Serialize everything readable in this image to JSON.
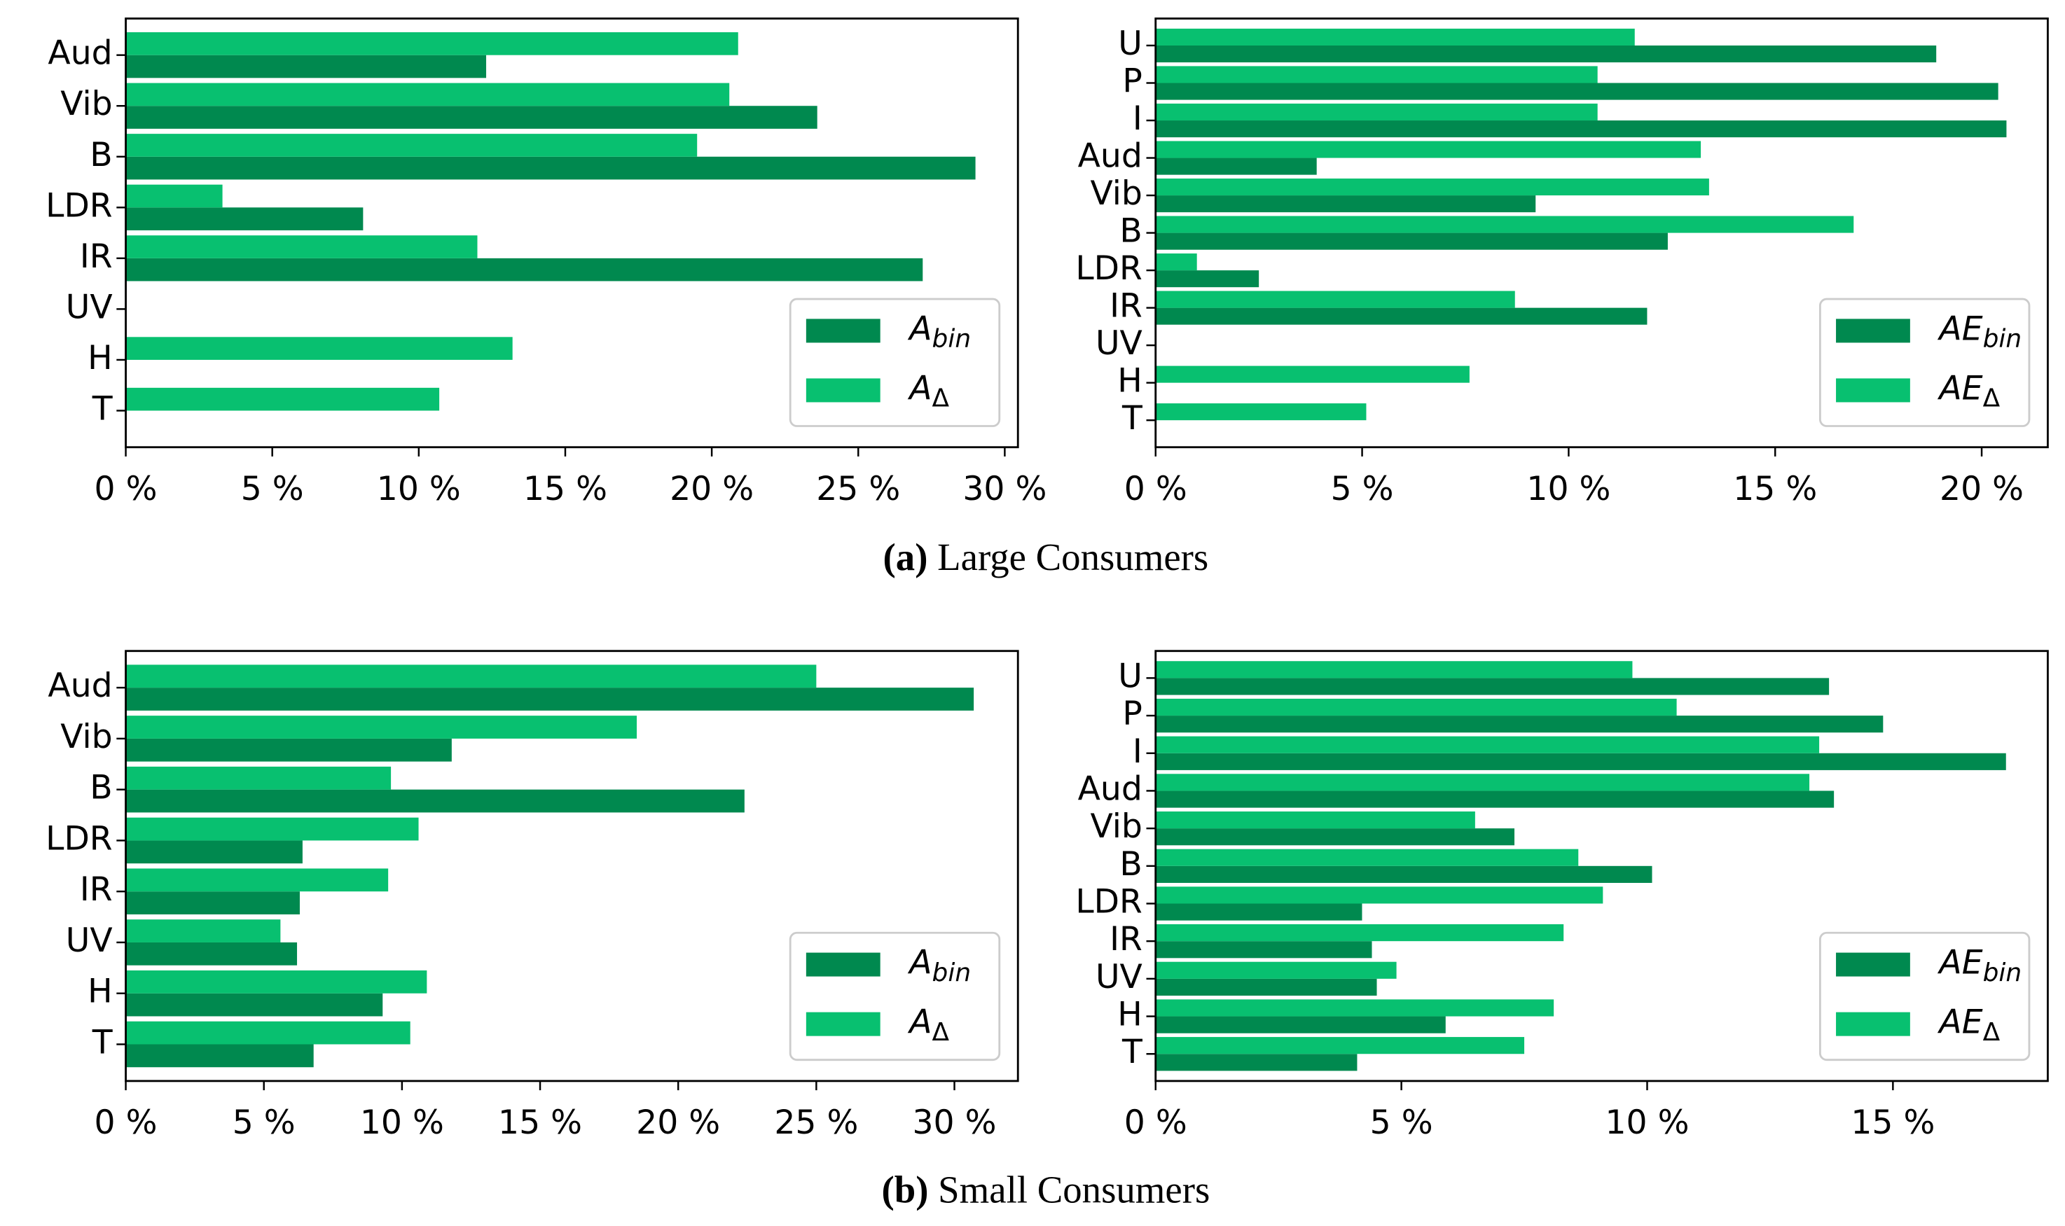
{
  "chart_data": [
    {
      "type": "barh",
      "categories": [
        "Aud",
        "Vib",
        "B",
        "LDR",
        "IR",
        "UV",
        "H",
        "T"
      ],
      "series": [
        {
          "name": "A_bin",
          "color": "#00894f",
          "values": [
            12.3,
            23.6,
            29.0,
            8.1,
            27.2,
            0,
            0,
            0
          ]
        },
        {
          "name": "A_Δ",
          "color": "#08c070",
          "values": [
            20.9,
            20.6,
            19.5,
            3.3,
            12.0,
            0,
            13.2,
            10.7
          ]
        }
      ],
      "xlim": [
        0,
        30.45
      ],
      "xticks": [
        {
          "value": 0,
          "label": "0 %"
        },
        {
          "value": 5,
          "label": "5 %"
        },
        {
          "value": 10,
          "label": "10 %"
        },
        {
          "value": 15,
          "label": "15 %"
        },
        {
          "value": 20,
          "label": "20 %"
        },
        {
          "value": 25,
          "label": "25 %"
        },
        {
          "value": 30,
          "label": "30 %"
        }
      ],
      "legend": "lower right"
    },
    {
      "type": "barh",
      "categories": [
        "U",
        "P",
        "I",
        "Aud",
        "Vib",
        "B",
        "LDR",
        "IR",
        "UV",
        "H",
        "T"
      ],
      "series": [
        {
          "name": "AE_bin",
          "color": "#00894f",
          "values": [
            18.9,
            20.4,
            20.6,
            3.9,
            9.2,
            12.4,
            2.5,
            11.9,
            0,
            0,
            0
          ]
        },
        {
          "name": "AE_Δ",
          "color": "#08c070",
          "values": [
            11.6,
            10.7,
            10.7,
            13.2,
            13.4,
            16.9,
            1.0,
            8.7,
            0,
            7.6,
            5.1
          ]
        }
      ],
      "xlim": [
        0,
        21.6
      ],
      "xticks": [
        {
          "value": 0,
          "label": "0 %"
        },
        {
          "value": 5,
          "label": "5 %"
        },
        {
          "value": 10,
          "label": "10 %"
        },
        {
          "value": 15,
          "label": "15 %"
        },
        {
          "value": 20,
          "label": "20 %"
        }
      ],
      "legend": "lower right"
    },
    {
      "type": "barh",
      "categories": [
        "Aud",
        "Vib",
        "B",
        "LDR",
        "IR",
        "UV",
        "H",
        "T"
      ],
      "series": [
        {
          "name": "A_bin",
          "color": "#00894f",
          "values": [
            30.7,
            11.8,
            22.4,
            6.4,
            6.3,
            6.2,
            9.3,
            6.8
          ]
        },
        {
          "name": "A_Δ",
          "color": "#08c070",
          "values": [
            25.0,
            18.5,
            9.6,
            10.6,
            9.5,
            5.6,
            10.9,
            10.3
          ]
        }
      ],
      "xlim": [
        0,
        32.3
      ],
      "xticks": [
        {
          "value": 0,
          "label": "0 %"
        },
        {
          "value": 5,
          "label": "5 %"
        },
        {
          "value": 10,
          "label": "10 %"
        },
        {
          "value": 15,
          "label": "15 %"
        },
        {
          "value": 20,
          "label": "20 %"
        },
        {
          "value": 25,
          "label": "25 %"
        },
        {
          "value": 30,
          "label": "30 %"
        }
      ],
      "legend": "lower right"
    },
    {
      "type": "barh",
      "categories": [
        "U",
        "P",
        "I",
        "Aud",
        "Vib",
        "B",
        "LDR",
        "IR",
        "UV",
        "H",
        "T"
      ],
      "series": [
        {
          "name": "AE_bin",
          "color": "#00894f",
          "values": [
            13.7,
            14.8,
            17.3,
            13.8,
            7.3,
            10.1,
            4.2,
            4.4,
            4.5,
            5.9,
            4.1
          ]
        },
        {
          "name": "AE_Δ",
          "color": "#08c070",
          "values": [
            9.7,
            10.6,
            13.5,
            13.3,
            6.5,
            8.6,
            9.1,
            8.3,
            4.9,
            8.1,
            7.5
          ]
        }
      ],
      "xlim": [
        0,
        18.15
      ],
      "xticks": [
        {
          "value": 0,
          "label": "0 %"
        },
        {
          "value": 5,
          "label": "5 %"
        },
        {
          "value": 10,
          "label": "10 %"
        },
        {
          "value": 15,
          "label": "15 %"
        }
      ],
      "legend": "lower right"
    }
  ],
  "captions": [
    {
      "label": "(a)",
      "text": "Large Consumers"
    },
    {
      "label": "(b)",
      "text": "Small Consumers"
    }
  ]
}
